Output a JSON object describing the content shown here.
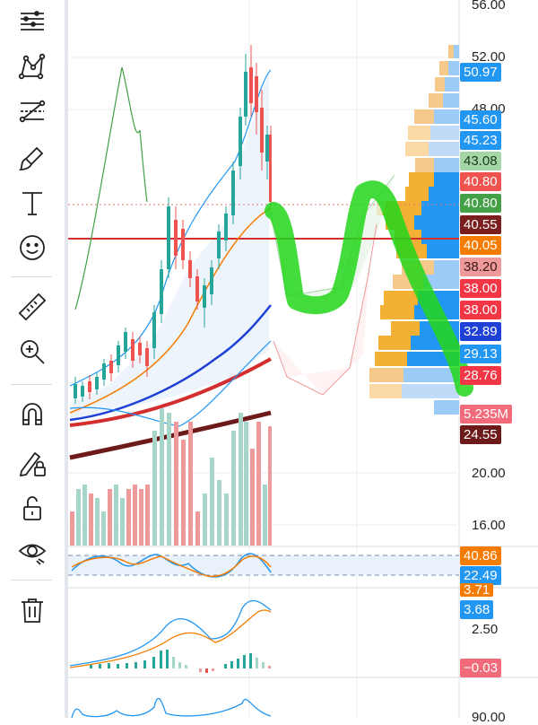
{
  "toolbar": {
    "tools": [
      {
        "name": "indicators-menu-icon"
      },
      {
        "name": "pattern-tool-icon"
      },
      {
        "name": "fib-tool-icon"
      },
      {
        "name": "brush-tool-icon"
      },
      {
        "name": "text-tool-icon"
      },
      {
        "name": "emoji-tool-icon"
      },
      {
        "name": "ruler-icon"
      },
      {
        "name": "zoom-in-icon"
      },
      {
        "name": "magnet-icon"
      },
      {
        "name": "lock-drawing-icon"
      },
      {
        "name": "unlock-icon"
      },
      {
        "name": "eye-icon"
      },
      {
        "name": "trash-icon"
      }
    ]
  },
  "price_axis": {
    "ticks": [
      "56.00",
      "52.00",
      "48.00",
      "20.00",
      "16.00"
    ],
    "labels": [
      {
        "text": "50.97",
        "color": "#2196f3"
      },
      {
        "text": "45.60",
        "color": "#2196f3"
      },
      {
        "text": "45.23",
        "color": "#2196f3"
      },
      {
        "text": "43.08",
        "color": "#a5d6a7",
        "text_color": "#1b3a1b"
      },
      {
        "text": "40.80",
        "color": "#ef5350"
      },
      {
        "text": "40.80",
        "color": "#43a047"
      },
      {
        "text": "40.55",
        "color": "#7b1e1e"
      },
      {
        "text": "40.05",
        "color": "#f57c00"
      },
      {
        "text": "38.20",
        "color": "#ef9a9a",
        "text_color": "#3a1515"
      },
      {
        "text": "38.00",
        "color": "#f23645"
      },
      {
        "text": "38.00",
        "color": "#f23645"
      },
      {
        "text": "32.89",
        "color": "#1e40d6"
      },
      {
        "text": "29.13",
        "color": "#2196f3"
      },
      {
        "text": "28.76",
        "color": "#f23645"
      },
      {
        "text": "5.235M",
        "color": "#f26b7a"
      },
      {
        "text": "24.55",
        "color": "#6d1a1a"
      }
    ]
  },
  "stoch_pane": {
    "labels": [
      {
        "text": "40.86",
        "color": "#f57c00"
      },
      {
        "text": "22.49",
        "color": "#2196f3"
      }
    ]
  },
  "macd_pane": {
    "ticks": [
      "2.50"
    ],
    "labels": [
      {
        "text": "3.71",
        "color": "#f57c00"
      },
      {
        "text": "3.68",
        "color": "#2196f3"
      },
      {
        "text": "−0.03",
        "color": "#f26b7a"
      }
    ]
  },
  "bottom_pane": {
    "ticks": [
      "90.00"
    ]
  }
}
